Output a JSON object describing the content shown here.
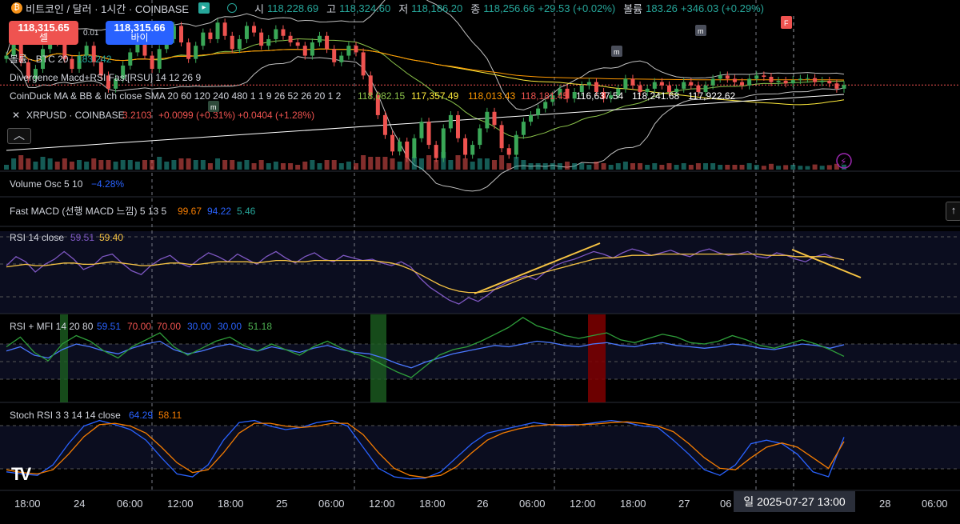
{
  "header": {
    "symbol_title": "비트코인 / 달러 · 1시간 · COINBASE",
    "open_label": "시",
    "open_value": "118,228.69",
    "high_label": "고",
    "high_value": "118,324.60",
    "low_label": "저",
    "low_value": "118,186.20",
    "close_label": "종",
    "close_value": "118,256.66",
    "change": "+29.53 (+0.02%)",
    "volume_label": "볼륨",
    "volume_value": "183.26",
    "volume_change": "+346.03 (+0.29%)"
  },
  "trade": {
    "sell_price": "118,315.65",
    "sell_label": "셀",
    "buy_price": "118,315.66",
    "buy_label": "바이",
    "spread": "0.01"
  },
  "legends": {
    "volume": {
      "name": "볼륨 · BTC 20",
      "value": "183.242"
    },
    "divergence": {
      "name": "Divergence Macd+RSI Fast[RSU] 14 12 26 9"
    },
    "coinduck": {
      "name": "CoinDuck MA & BB & Ich close SMA 20 60 120 240 480 1 1 9 26 52 26 20 1 2",
      "values": [
        "118,082.15",
        "117,357.49",
        "118,013.43",
        "118,181.45",
        "116,637.54",
        "118,241.68",
        "117,922.62"
      ]
    },
    "xrp": {
      "name": "XRPUSD · COINBASE",
      "value": "3.2103",
      "change": "+0.0099 (+0.31%)",
      "change2": "+0.0404 (+1.28%)"
    },
    "volume_osc": {
      "name": "Volume Osc 5 10",
      "value": "−4.28%"
    },
    "fast_macd": {
      "name": "Fast MACD (선행 MACD 느낌) 5 13 5",
      "values": [
        "99.67",
        "94.22",
        "5.46"
      ]
    },
    "rsi": {
      "name": "RSI 14 close",
      "values": [
        "59.51",
        "59.40"
      ]
    },
    "rsi_mfi": {
      "name": "RSI + MFI 14 20 80",
      "values": [
        "59.51",
        "70.00",
        "70.00",
        "30.00",
        "30.00",
        "51.18"
      ]
    },
    "stoch": {
      "name": "Stoch RSI 3 3 14 14 close",
      "values": [
        "64.29",
        "58.11"
      ]
    }
  },
  "colors": {
    "up": "#26a69a",
    "up_candle": "#3aa757",
    "down": "#ef5350",
    "rsi": "#7e57c2",
    "signal": "#f6c343",
    "blue": "#2962ff",
    "green_line": "#2e9e3a",
    "orange": "#f57c00",
    "stoch_k": "#2962ff",
    "stoch_d": "#f57c00",
    "pane_bg": "#0b0d1f"
  },
  "time_axis": {
    "labels": [
      "18:00",
      "24",
      "06:00",
      "12:00",
      "18:00",
      "25",
      "06:00",
      "12:00",
      "18:00",
      "26",
      "06:00",
      "12:00",
      "18:00",
      "27",
      "06",
      "28",
      "06:00"
    ],
    "crosshair_label": "일 2025-07-27   13:00"
  },
  "chart_data": [
    {
      "type": "candlestick",
      "title": "비트코인 / 달러 · 1시간 · COINBASE",
      "ylim": [
        117000,
        119300
      ],
      "close": [
        118700,
        118950,
        118600,
        118350,
        118500,
        118800,
        119050,
        118900,
        118650,
        118500,
        118700,
        118850,
        118600,
        118400,
        118200,
        118350,
        118550,
        118750,
        118900,
        118700,
        118500,
        118800,
        118950,
        119150,
        118900,
        118650,
        118850,
        119050,
        118950,
        119200,
        119000,
        118800,
        118950,
        119150,
        119050,
        118850,
        118950,
        119100,
        119000,
        118900,
        118850,
        118700,
        118900,
        119000,
        118800,
        118600,
        118700,
        118850,
        118750,
        118400,
        118100,
        117800,
        117500,
        117250,
        117400,
        117150,
        117450,
        117700,
        117350,
        117150,
        117600,
        117800,
        117450,
        117200,
        117350,
        117600,
        117850,
        117650,
        117300,
        117200,
        117500,
        117700,
        117800,
        117900,
        118000,
        118100,
        118200,
        118050,
        118150,
        118250,
        118300,
        118150,
        118050,
        118100,
        118200,
        118350,
        118250,
        118150,
        118200,
        118300,
        118250,
        118150,
        118200,
        118300,
        118250,
        118150,
        118250,
        118350,
        118400,
        118350,
        118300,
        118250,
        118350,
        118400,
        118380,
        118300,
        118320,
        118280,
        118330,
        118350,
        118360,
        118300,
        118320,
        118280,
        118200,
        118256
      ]
    },
    {
      "type": "line",
      "title": "RSI 14 close",
      "ylim": [
        20,
        80
      ],
      "series": [
        {
          "name": "RSI",
          "values": [
            55,
            62,
            58,
            50,
            56,
            60,
            66,
            60,
            52,
            55,
            62,
            64,
            57,
            51,
            48,
            55,
            60,
            63,
            57,
            54,
            60,
            65,
            62,
            58,
            64,
            60,
            56,
            62,
            66,
            61,
            57,
            62,
            65,
            60,
            58,
            63,
            61,
            59,
            60,
            57,
            55,
            58,
            54,
            45,
            38,
            33,
            28,
            25,
            30,
            27,
            32,
            38,
            42,
            45,
            47,
            44,
            50,
            55,
            58,
            60,
            63,
            66,
            64,
            61,
            65,
            68,
            66,
            63,
            65,
            67,
            64,
            62,
            66,
            68,
            65,
            63,
            64,
            66,
            62,
            61,
            65,
            63,
            60,
            58,
            62,
            64,
            61,
            59.51
          ]
        },
        {
          "name": "Signal",
          "values": [
            54,
            55,
            56,
            55,
            55,
            56,
            57,
            57,
            56,
            56,
            57,
            58,
            57,
            56,
            55,
            55,
            56,
            57,
            57,
            56,
            56,
            57,
            58,
            58,
            58,
            58,
            57,
            58,
            59,
            59,
            58,
            58,
            59,
            59,
            59,
            59,
            59,
            59,
            59,
            58,
            57,
            55,
            52,
            48,
            44,
            40,
            37,
            35,
            34,
            34,
            35,
            37,
            40,
            43,
            46,
            48,
            50,
            52,
            54,
            56,
            58,
            60,
            61,
            61,
            62,
            63,
            63,
            63,
            64,
            64,
            64,
            64,
            64,
            64,
            64,
            64,
            64,
            64,
            64,
            63,
            63,
            63,
            62,
            62,
            62,
            62,
            61,
            59.4
          ]
        }
      ]
    },
    {
      "type": "line",
      "title": "RSI + MFI 14 20 80",
      "ylim": [
        20,
        80
      ],
      "series": [
        {
          "name": "RSI",
          "values": [
            55,
            58,
            52,
            50,
            56,
            60,
            58,
            55,
            53,
            57,
            60,
            62,
            56,
            53,
            55,
            58,
            60,
            57,
            55,
            58,
            56,
            54,
            57,
            59,
            56,
            54,
            53,
            50,
            46,
            43,
            47,
            50,
            53,
            55,
            57,
            59,
            58,
            60,
            62,
            61,
            59,
            58,
            60,
            61,
            59,
            58,
            60,
            61,
            59,
            58,
            57,
            58,
            60,
            59,
            57,
            56,
            58,
            60,
            59,
            57,
            59.51
          ]
        },
        {
          "name": "MFI",
          "values": [
            58,
            65,
            54,
            48,
            60,
            66,
            62,
            55,
            50,
            58,
            63,
            68,
            58,
            52,
            57,
            62,
            65,
            59,
            55,
            60,
            56,
            52,
            58,
            62,
            57,
            53,
            50,
            45,
            40,
            36,
            44,
            52,
            56,
            58,
            62,
            67,
            72,
            79,
            73,
            70,
            66,
            64,
            66,
            68,
            63,
            61,
            64,
            67,
            65,
            61,
            60,
            62,
            66,
            63,
            59,
            57,
            60,
            63,
            60,
            56,
            51.18
          ]
        }
      ]
    },
    {
      "type": "line",
      "title": "Stoch RSI 3 3 14 14 close",
      "ylim": [
        0,
        100
      ],
      "series": [
        {
          "name": "K",
          "values": [
            15,
            12,
            10,
            25,
            55,
            80,
            88,
            82,
            75,
            60,
            35,
            12,
            8,
            25,
            60,
            85,
            88,
            80,
            75,
            78,
            85,
            88,
            80,
            50,
            20,
            8,
            5,
            6,
            15,
            35,
            55,
            70,
            75,
            80,
            85,
            82,
            80,
            82,
            85,
            88,
            85,
            80,
            78,
            60,
            40,
            18,
            10,
            25,
            55,
            60,
            55,
            40,
            15,
            8,
            64.29
          ]
        },
        {
          "name": "D",
          "values": [
            18,
            14,
            12,
            18,
            40,
            65,
            82,
            84,
            80,
            70,
            50,
            28,
            14,
            18,
            42,
            70,
            84,
            84,
            80,
            78,
            80,
            84,
            84,
            68,
            42,
            20,
            10,
            7,
            10,
            22,
            42,
            60,
            70,
            76,
            80,
            82,
            82,
            82,
            83,
            85,
            86,
            84,
            80,
            72,
            55,
            35,
            20,
            18,
            35,
            50,
            56,
            50,
            35,
            20,
            58.11
          ]
        }
      ]
    }
  ]
}
